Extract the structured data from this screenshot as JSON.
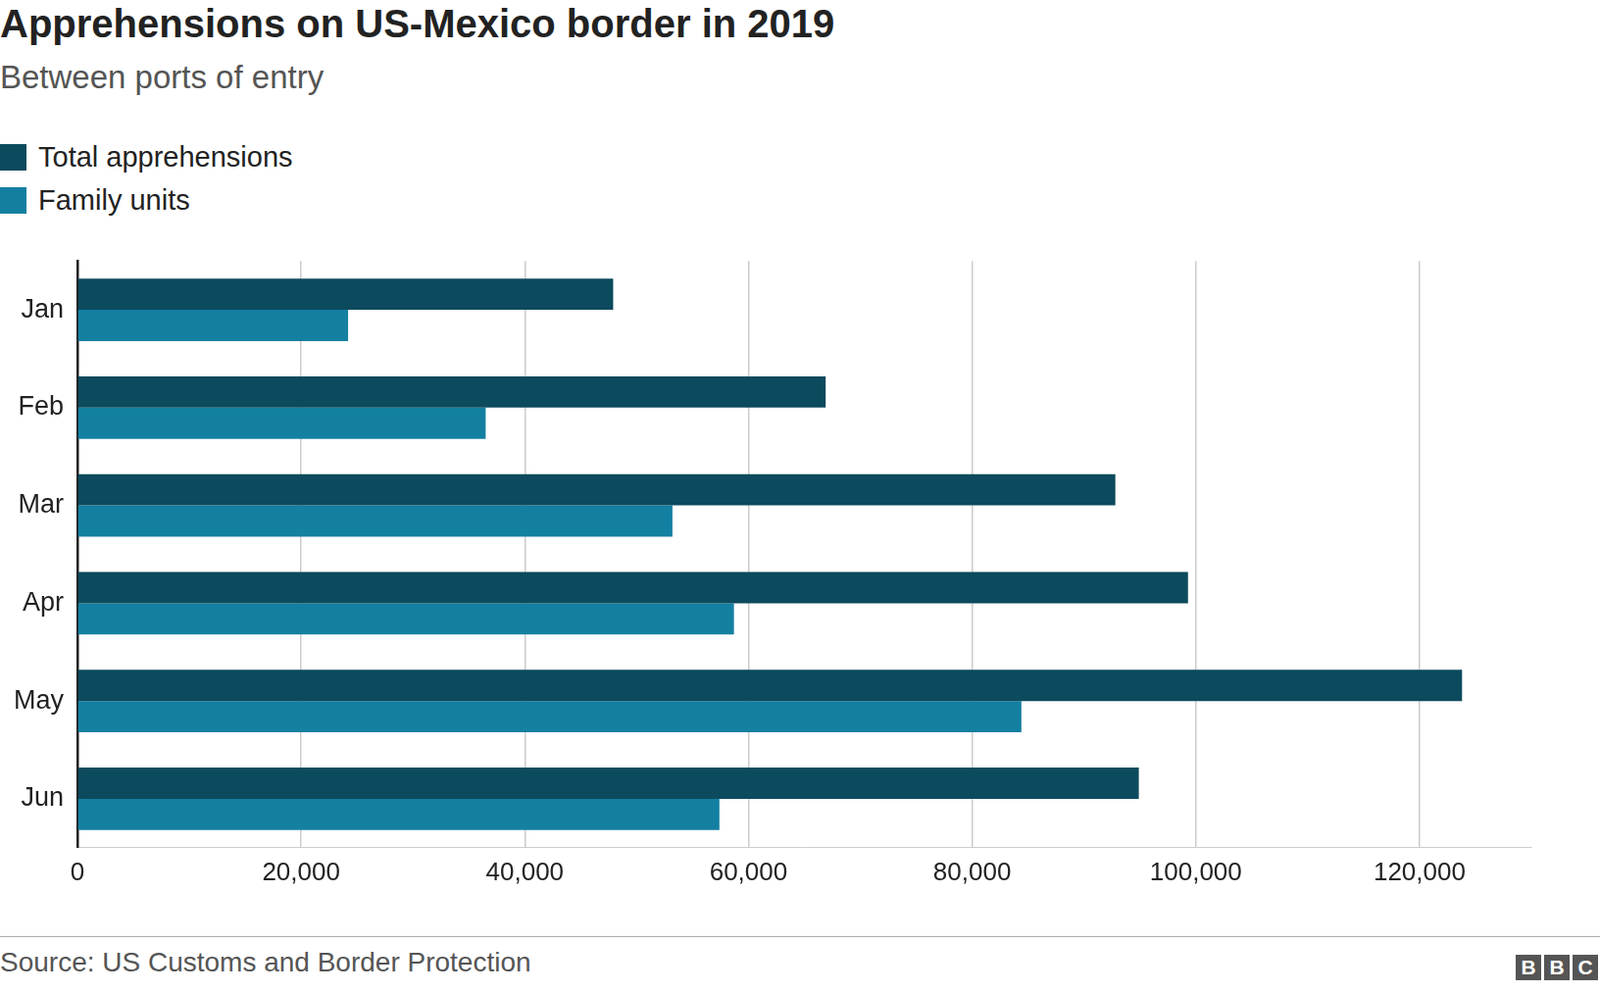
{
  "chart_data": {
    "type": "bar",
    "title": "Apprehensions on US-Mexico border in 2019",
    "subtitle": "Between ports of entry",
    "source": "Source: US Customs and Border Protection",
    "credit": "BBC",
    "orientation": "horizontal",
    "categories": [
      "Jan",
      "Feb",
      "Mar",
      "Apr",
      "May",
      "Jun"
    ],
    "series": [
      {
        "name": "Total apprehensions",
        "color": "#0c4a5d",
        "values": [
          47900,
          66900,
          92800,
          99300,
          123800,
          94900
        ]
      },
      {
        "name": "Family units",
        "color": "#1380a1",
        "values": [
          24200,
          36500,
          53200,
          58700,
          84400,
          57400
        ]
      }
    ],
    "xlim": [
      0,
      130000
    ],
    "xticks": [
      0,
      {
        "value": 20000,
        "label": "20,000"
      },
      {
        "value": 40000,
        "label": "40,000"
      },
      {
        "value": 60000,
        "label": "60,000"
      },
      {
        "value": 80000,
        "label": "80,000"
      },
      {
        "value": 100000,
        "label": "100,000"
      },
      {
        "value": 120000,
        "label": "120,000"
      }
    ],
    "grid": true,
    "legend": "top-left",
    "data_labels": false
  }
}
